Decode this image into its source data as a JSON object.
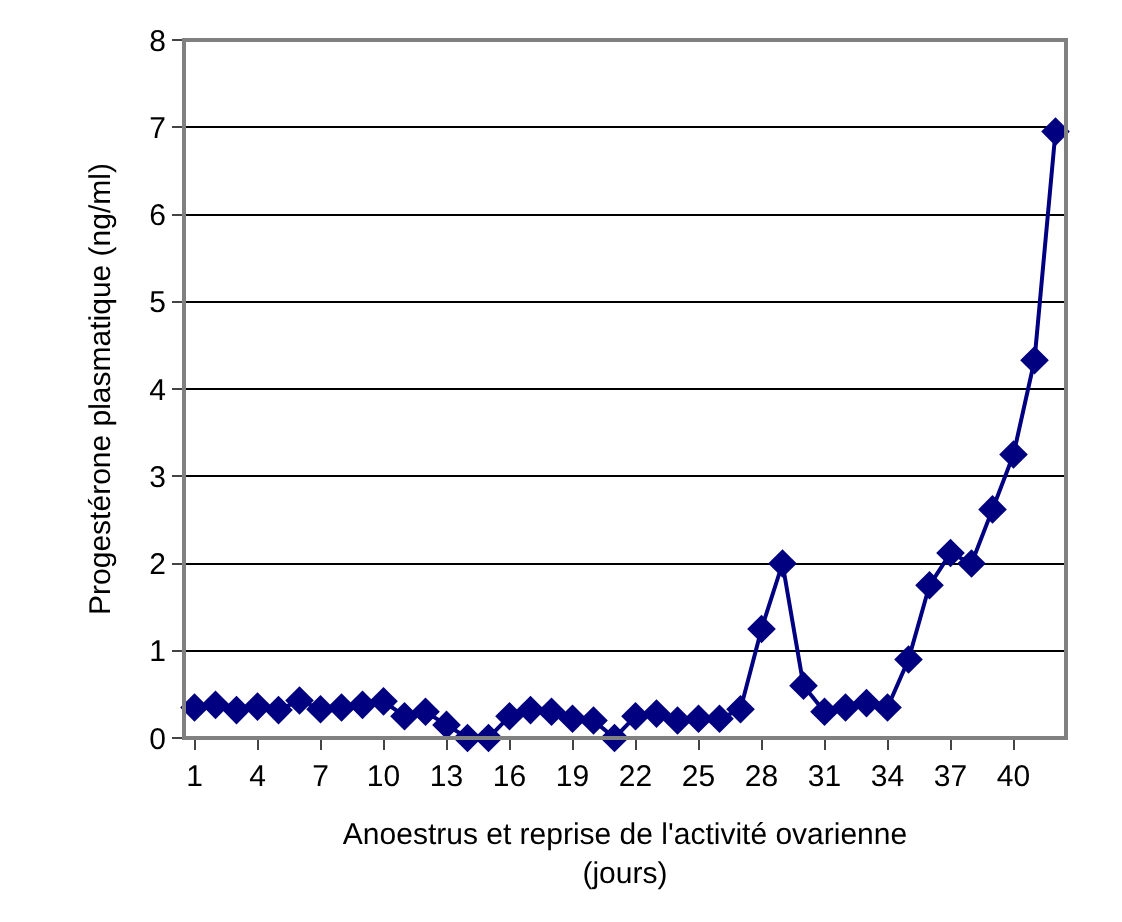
{
  "chart_data": {
    "type": "line",
    "xlabel": "Anoestrus et reprise de l'activité ovarienne\n(jours)",
    "ylabel": "Progestérone plasmatique (ng/ml)",
    "categories": [
      "1",
      null,
      null,
      "4",
      null,
      null,
      "7",
      null,
      null,
      "10",
      null,
      null,
      "13",
      null,
      null,
      "16",
      null,
      null,
      "19",
      null,
      null,
      "22",
      null,
      null,
      "25",
      null,
      null,
      "28",
      null,
      null,
      "31",
      null,
      null,
      "34",
      null,
      null,
      "37",
      null,
      null,
      "40",
      null,
      null
    ],
    "series": [
      {
        "color": "#000080",
        "values": [
          0.35,
          0.38,
          0.32,
          0.36,
          0.32,
          0.43,
          0.33,
          0.35,
          0.38,
          0.42,
          0.25,
          0.3,
          0.15,
          0.0,
          0.0,
          0.25,
          0.32,
          0.3,
          0.22,
          0.2,
          0.0,
          0.25,
          0.28,
          0.2,
          0.22,
          0.22,
          0.33,
          1.25,
          2.0,
          0.6,
          0.3,
          0.35,
          0.4,
          0.35,
          0.9,
          1.75,
          2.12,
          2.0,
          2.62,
          3.25,
          4.33,
          6.95
        ]
      }
    ],
    "ylim": [
      0,
      8
    ],
    "yticks": [
      0,
      1,
      2,
      3,
      4,
      5,
      6,
      7,
      8
    ],
    "grid": "y",
    "marker": "diamond",
    "line_style": "solid",
    "legend": false
  }
}
